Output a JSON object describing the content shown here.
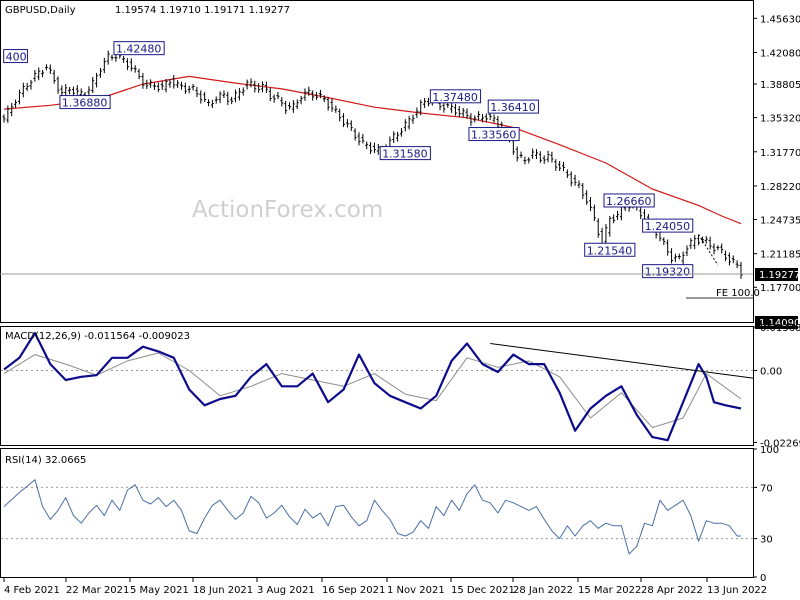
{
  "header": {
    "symbol": "GBPUSD,Daily",
    "ohlc": "1.19574 1.19710 1.19171 1.19277"
  },
  "watermark": "ActionForex.com",
  "colors": {
    "price": "#000000",
    "ma": "#d21a1a",
    "macd": "#0c0c8c",
    "signal": "#8c8c8c",
    "trendline": "#000000",
    "levels_text": "#1a1a8a"
  },
  "chart_data": [
    {
      "type": "ohlc",
      "title": "GBPUSD,Daily",
      "ohlc_values": "1.19574 1.19710 1.19171 1.19277",
      "current_price_label": "1.19277",
      "bottom_marker_label": "1.14090",
      "fib_label": "FE 100.0",
      "y_ticks": [
        "1.45630",
        "1.42080",
        "1.38805",
        "1.35320",
        "1.31770",
        "1.28220",
        "1.24735",
        "1.21185",
        "1.17700"
      ],
      "ylim": [
        1.1409,
        1.4743
      ],
      "x_ticks": [
        "4 Feb 2021",
        "22 Mar 2021",
        "5 May 2021",
        "18 Jun 2021",
        "3 Aug 2021",
        "16 Sep 2021",
        "1 Nov 2021",
        "15 Dec 2021",
        "28 Jan 2022",
        "15 Mar 2022",
        "28 Apr 2022",
        "13 Jun 2022"
      ],
      "price_path": [
        [
          0,
          1.352
        ],
        [
          3,
          1.372
        ],
        [
          6,
          1.388
        ],
        [
          9,
          1.4
        ],
        [
          11,
          1.406
        ],
        [
          13,
          1.392
        ],
        [
          15,
          1.378
        ],
        [
          17,
          1.384
        ],
        [
          19,
          1.378
        ],
        [
          21,
          1.378
        ],
        [
          23,
          1.388
        ],
        [
          25,
          1.405
        ],
        [
          27,
          1.416
        ],
        [
          29,
          1.418
        ],
        [
          31,
          1.412
        ],
        [
          33,
          1.406
        ],
        [
          35,
          1.395
        ],
        [
          37,
          1.386
        ],
        [
          39,
          1.387
        ],
        [
          41,
          1.384
        ],
        [
          43,
          1.392
        ],
        [
          45,
          1.386
        ],
        [
          47,
          1.384
        ],
        [
          49,
          1.382
        ],
        [
          51,
          1.375
        ],
        [
          53,
          1.366
        ],
        [
          55,
          1.374
        ],
        [
          57,
          1.376
        ],
        [
          59,
          1.371
        ],
        [
          61,
          1.38
        ],
        [
          63,
          1.389
        ],
        [
          65,
          1.385
        ],
        [
          67,
          1.385
        ],
        [
          69,
          1.376
        ],
        [
          71,
          1.372
        ],
        [
          73,
          1.364
        ],
        [
          75,
          1.364
        ],
        [
          77,
          1.376
        ],
        [
          79,
          1.379
        ],
        [
          81,
          1.376
        ],
        [
          83,
          1.372
        ],
        [
          85,
          1.363
        ],
        [
          87,
          1.354
        ],
        [
          89,
          1.345
        ],
        [
          91,
          1.335
        ],
        [
          93,
          1.326
        ],
        [
          95,
          1.322
        ],
        [
          97,
          1.319
        ],
        [
          99,
          1.324
        ],
        [
          101,
          1.333
        ],
        [
          103,
          1.341
        ],
        [
          105,
          1.35
        ],
        [
          107,
          1.361
        ],
        [
          109,
          1.37
        ],
        [
          111,
          1.372
        ],
        [
          113,
          1.366
        ],
        [
          115,
          1.364
        ],
        [
          117,
          1.361
        ],
        [
          119,
          1.357
        ],
        [
          121,
          1.352
        ],
        [
          123,
          1.353
        ],
        [
          125,
          1.355
        ],
        [
          127,
          1.35
        ],
        [
          129,
          1.342
        ],
        [
          131,
          1.33
        ],
        [
          133,
          1.312
        ],
        [
          135,
          1.309
        ],
        [
          137,
          1.316
        ],
        [
          139,
          1.311
        ],
        [
          141,
          1.312
        ],
        [
          143,
          1.305
        ],
        [
          145,
          1.298
        ],
        [
          147,
          1.289
        ],
        [
          149,
          1.281
        ],
        [
          151,
          1.268
        ],
        [
          153,
          1.247
        ],
        [
          155,
          1.223
        ],
        [
          157,
          1.248
        ],
        [
          159,
          1.252
        ],
        [
          161,
          1.263
        ],
        [
          163,
          1.262
        ],
        [
          165,
          1.254
        ],
        [
          167,
          1.243
        ],
        [
          169,
          1.235
        ],
        [
          171,
          1.221
        ],
        [
          173,
          1.208
        ],
        [
          175,
          1.206
        ],
        [
          177,
          1.219
        ],
        [
          179,
          1.226
        ],
        [
          181,
          1.227
        ],
        [
          183,
          1.22
        ],
        [
          185,
          1.217
        ],
        [
          187,
          1.209
        ],
        [
          189,
          1.203
        ],
        [
          191,
          1.193
        ]
      ],
      "ma_path": [
        [
          0,
          1.362
        ],
        [
          12,
          1.366
        ],
        [
          24,
          1.372
        ],
        [
          36,
          1.388
        ],
        [
          48,
          1.396
        ],
        [
          60,
          1.389
        ],
        [
          72,
          1.383
        ],
        [
          84,
          1.374
        ],
        [
          96,
          1.364
        ],
        [
          108,
          1.358
        ],
        [
          120,
          1.353
        ],
        [
          132,
          1.343
        ],
        [
          144,
          1.325
        ],
        [
          156,
          1.306
        ],
        [
          168,
          1.279
        ],
        [
          180,
          1.262
        ],
        [
          186,
          1.251
        ],
        [
          191,
          1.243
        ]
      ],
      "levels": [
        {
          "label": "400",
          "value": 1.4166,
          "bar": 3
        },
        {
          "label": "1.36880",
          "value": 1.3688,
          "bar": 21
        },
        {
          "label": "1.42480",
          "value": 1.4248,
          "bar": 35
        },
        {
          "label": "1.37480",
          "value": 1.3748,
          "bar": 117
        },
        {
          "label": "1.36410",
          "value": 1.3641,
          "bar": 132
        },
        {
          "label": "1.33560",
          "value": 1.3356,
          "bar": 127
        },
        {
          "label": "1.31580",
          "value": 1.3158,
          "bar": 104
        },
        {
          "label": "1.26660",
          "value": 1.2666,
          "bar": 162
        },
        {
          "label": "1.24050",
          "value": 1.2405,
          "bar": 172
        },
        {
          "label": "1.21540",
          "value": 1.2154,
          "bar": 157
        },
        {
          "label": "1.19320",
          "value": 1.1932,
          "bar": 172
        }
      ]
    },
    {
      "type": "line",
      "title": "MACD(12,26,9) -0.011564 -0.009023",
      "y_ticks": [
        "0.013686",
        "0.00",
        "-0.022698"
      ],
      "ylim": [
        -0.0235,
        0.0137
      ],
      "macd_path": [
        [
          0,
          0.0003
        ],
        [
          4,
          0.004
        ],
        [
          8,
          0.0118
        ],
        [
          12,
          0.002
        ],
        [
          16,
          -0.003
        ],
        [
          20,
          -0.002
        ],
        [
          24,
          -0.0015
        ],
        [
          28,
          0.004
        ],
        [
          32,
          0.004
        ],
        [
          36,
          0.0075
        ],
        [
          40,
          0.006
        ],
        [
          44,
          0.004
        ],
        [
          48,
          -0.006
        ],
        [
          52,
          -0.011
        ],
        [
          56,
          -0.009
        ],
        [
          60,
          -0.008
        ],
        [
          64,
          -0.002
        ],
        [
          68,
          0.002
        ],
        [
          72,
          -0.005
        ],
        [
          76,
          -0.005
        ],
        [
          80,
          -0.001
        ],
        [
          84,
          -0.01
        ],
        [
          88,
          -0.006
        ],
        [
          92,
          0.005
        ],
        [
          96,
          -0.004
        ],
        [
          100,
          -0.008
        ],
        [
          104,
          -0.01
        ],
        [
          108,
          -0.012
        ],
        [
          112,
          -0.008
        ],
        [
          116,
          0.003
        ],
        [
          120,
          0.0085
        ],
        [
          124,
          0.002
        ],
        [
          128,
          -0.0005
        ],
        [
          132,
          0.005
        ],
        [
          136,
          0.002
        ],
        [
          140,
          0.002
        ],
        [
          144,
          -0.007
        ],
        [
          148,
          -0.019
        ],
        [
          152,
          -0.012
        ],
        [
          156,
          -0.008
        ],
        [
          160,
          -0.005
        ],
        [
          164,
          -0.014
        ],
        [
          168,
          -0.021
        ],
        [
          172,
          -0.022
        ],
        [
          176,
          -0.01
        ],
        [
          180,
          0.002
        ],
        [
          182,
          -0.002
        ],
        [
          184,
          -0.01
        ],
        [
          187,
          -0.011
        ],
        [
          191,
          -0.012
        ]
      ],
      "signal_path": [
        [
          0,
          -0.001
        ],
        [
          8,
          0.005
        ],
        [
          16,
          0.002
        ],
        [
          24,
          -0.0015
        ],
        [
          32,
          0.003
        ],
        [
          40,
          0.0055
        ],
        [
          48,
          0.0
        ],
        [
          56,
          -0.008
        ],
        [
          64,
          -0.005
        ],
        [
          72,
          -0.001
        ],
        [
          80,
          -0.003
        ],
        [
          88,
          -0.005
        ],
        [
          96,
          -0.001
        ],
        [
          104,
          -0.0075
        ],
        [
          112,
          -0.0095
        ],
        [
          120,
          0.004
        ],
        [
          128,
          0.001
        ],
        [
          136,
          0.003
        ],
        [
          144,
          -0.002
        ],
        [
          152,
          -0.015
        ],
        [
          160,
          -0.007
        ],
        [
          168,
          -0.018
        ],
        [
          176,
          -0.015
        ],
        [
          182,
          -0.001
        ],
        [
          191,
          -0.009
        ]
      ],
      "trendline": [
        [
          126,
          0.0085
        ],
        [
          194,
          -0.0024
        ]
      ]
    },
    {
      "type": "line",
      "title": "RSI(14) 32.0665",
      "y_ticks": [
        "100",
        "70",
        "30",
        "0"
      ],
      "ylim": [
        0,
        100
      ],
      "rsi_path": [
        [
          0,
          55
        ],
        [
          4,
          66
        ],
        [
          8,
          76
        ],
        [
          10,
          55
        ],
        [
          12,
          45
        ],
        [
          14,
          52
        ],
        [
          16,
          62
        ],
        [
          18,
          48
        ],
        [
          20,
          42
        ],
        [
          22,
          50
        ],
        [
          24,
          56
        ],
        [
          26,
          48
        ],
        [
          28,
          60
        ],
        [
          30,
          52
        ],
        [
          32,
          68
        ],
        [
          34,
          72
        ],
        [
          36,
          60
        ],
        [
          38,
          57
        ],
        [
          40,
          62
        ],
        [
          42,
          55
        ],
        [
          44,
          60
        ],
        [
          46,
          52
        ],
        [
          48,
          36
        ],
        [
          50,
          34
        ],
        [
          52,
          46
        ],
        [
          54,
          56
        ],
        [
          56,
          60
        ],
        [
          58,
          52
        ],
        [
          60,
          45
        ],
        [
          62,
          50
        ],
        [
          64,
          63
        ],
        [
          66,
          58
        ],
        [
          68,
          46
        ],
        [
          70,
          50
        ],
        [
          72,
          56
        ],
        [
          74,
          47
        ],
        [
          76,
          41
        ],
        [
          78,
          53
        ],
        [
          80,
          46
        ],
        [
          82,
          50
        ],
        [
          84,
          40
        ],
        [
          86,
          55
        ],
        [
          88,
          56
        ],
        [
          90,
          47
        ],
        [
          92,
          40
        ],
        [
          94,
          44
        ],
        [
          96,
          60
        ],
        [
          98,
          52
        ],
        [
          100,
          45
        ],
        [
          102,
          34
        ],
        [
          104,
          32
        ],
        [
          106,
          35
        ],
        [
          108,
          44
        ],
        [
          110,
          38
        ],
        [
          112,
          55
        ],
        [
          114,
          48
        ],
        [
          116,
          60
        ],
        [
          118,
          52
        ],
        [
          120,
          65
        ],
        [
          122,
          72
        ],
        [
          124,
          60
        ],
        [
          126,
          58
        ],
        [
          128,
          50
        ],
        [
          130,
          60
        ],
        [
          132,
          58
        ],
        [
          134,
          55
        ],
        [
          136,
          52
        ],
        [
          138,
          55
        ],
        [
          140,
          45
        ],
        [
          142,
          36
        ],
        [
          144,
          30
        ],
        [
          146,
          40
        ],
        [
          148,
          32
        ],
        [
          150,
          40
        ],
        [
          152,
          44
        ],
        [
          154,
          38
        ],
        [
          156,
          42
        ],
        [
          158,
          40
        ],
        [
          160,
          40
        ],
        [
          162,
          18
        ],
        [
          164,
          24
        ],
        [
          166,
          42
        ],
        [
          168,
          40
        ],
        [
          170,
          60
        ],
        [
          172,
          52
        ],
        [
          174,
          56
        ],
        [
          176,
          60
        ],
        [
          178,
          48
        ],
        [
          180,
          28
        ],
        [
          182,
          44
        ],
        [
          184,
          42
        ],
        [
          186,
          42
        ],
        [
          188,
          40
        ],
        [
          190,
          32
        ],
        [
          191,
          32
        ]
      ]
    }
  ]
}
